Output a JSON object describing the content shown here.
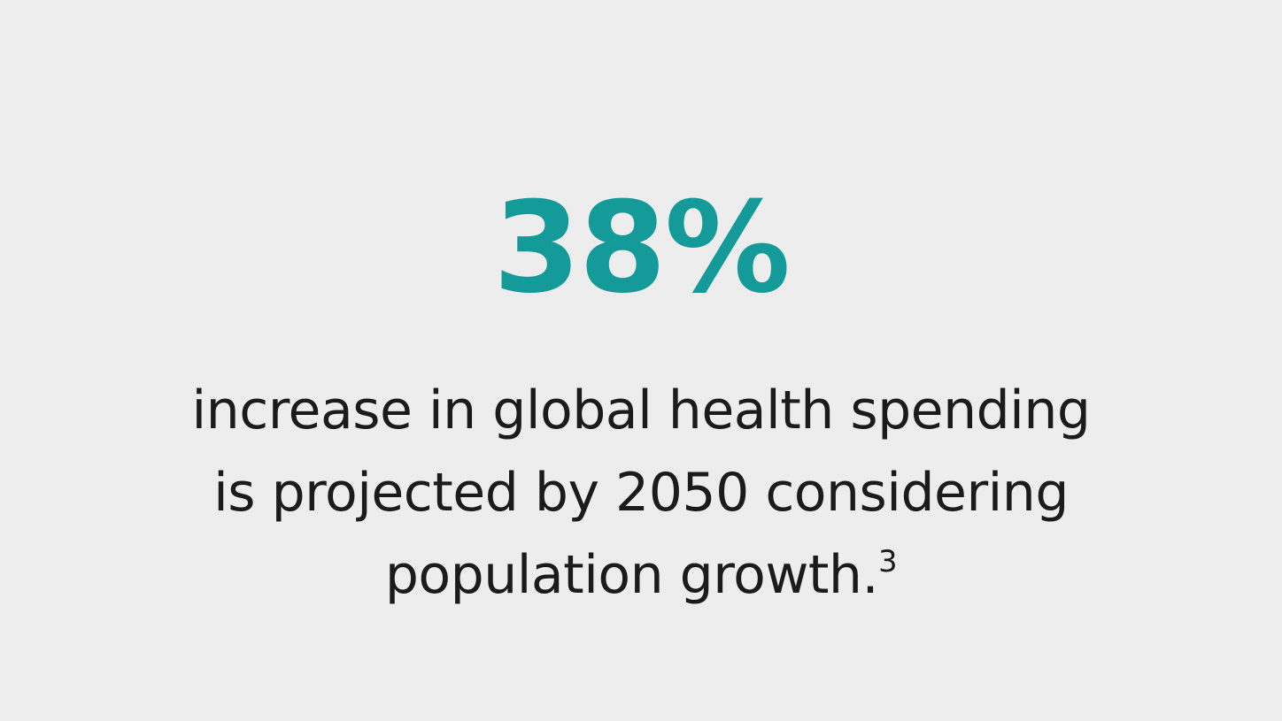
{
  "colors": {
    "accent": "#139a99",
    "background": "#ededed",
    "text": "#1b1b1b"
  },
  "stat": {
    "value": "38%"
  },
  "description": {
    "lines": [
      "increase in global health spending",
      "is projected by 2050 considering",
      "population growth."
    ],
    "footnote": "3"
  }
}
